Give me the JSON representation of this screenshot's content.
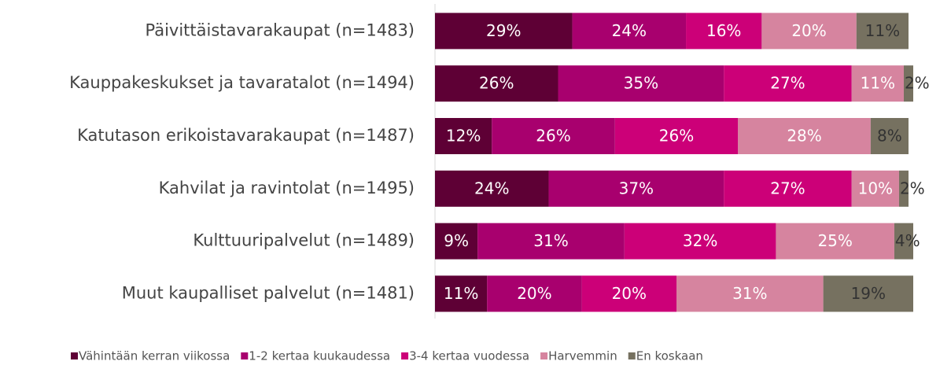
{
  "chart_data": {
    "type": "bar",
    "orientation": "horizontal",
    "stacked": true,
    "categories": [
      "Päivittäistavarakaupat (n=1483)",
      "Kauppakeskukset ja tavaratalot (n=1494)",
      "Katutason erikoistavarakaupat (n=1487)",
      "Kahvilat ja ravintolat (n=1495)",
      "Kulttuuripalvelut (n=1489)",
      "Muut kaupalliset palvelut (n=1481)"
    ],
    "series": [
      {
        "name": "Vähintään kerran viikossa",
        "color": "#5e0035",
        "values": [
          29,
          26,
          12,
          24,
          9,
          11
        ],
        "value_labels": [
          "29%",
          "26%",
          "12%",
          "24%",
          "9%",
          "11%"
        ]
      },
      {
        "name": "1-2 kertaa kuukaudessa",
        "color": "#a8006e",
        "values": [
          24,
          35,
          26,
          37,
          31,
          20
        ],
        "value_labels": [
          "24%",
          "35%",
          "26%",
          "37%",
          "31%",
          "20%"
        ]
      },
      {
        "name": "3-4 kertaa vuodessa",
        "color": "#cc0078",
        "values": [
          16,
          27,
          26,
          27,
          32,
          20
        ],
        "value_labels": [
          "16%",
          "27%",
          "26%",
          "27%",
          "32%",
          "20%"
        ]
      },
      {
        "name": "Harvemmin",
        "color": "#d6849f",
        "values": [
          20,
          11,
          28,
          10,
          25,
          31
        ],
        "value_labels": [
          "20%",
          "11%",
          "28%",
          "10%",
          "25%",
          "31%"
        ]
      },
      {
        "name": "En koskaan",
        "color": "#767160",
        "values": [
          11,
          2,
          8,
          2,
          4,
          19
        ],
        "value_labels": [
          "11%",
          "2%",
          "8%",
          "2%",
          "4%",
          "19%"
        ]
      }
    ],
    "legend": "bottom"
  }
}
